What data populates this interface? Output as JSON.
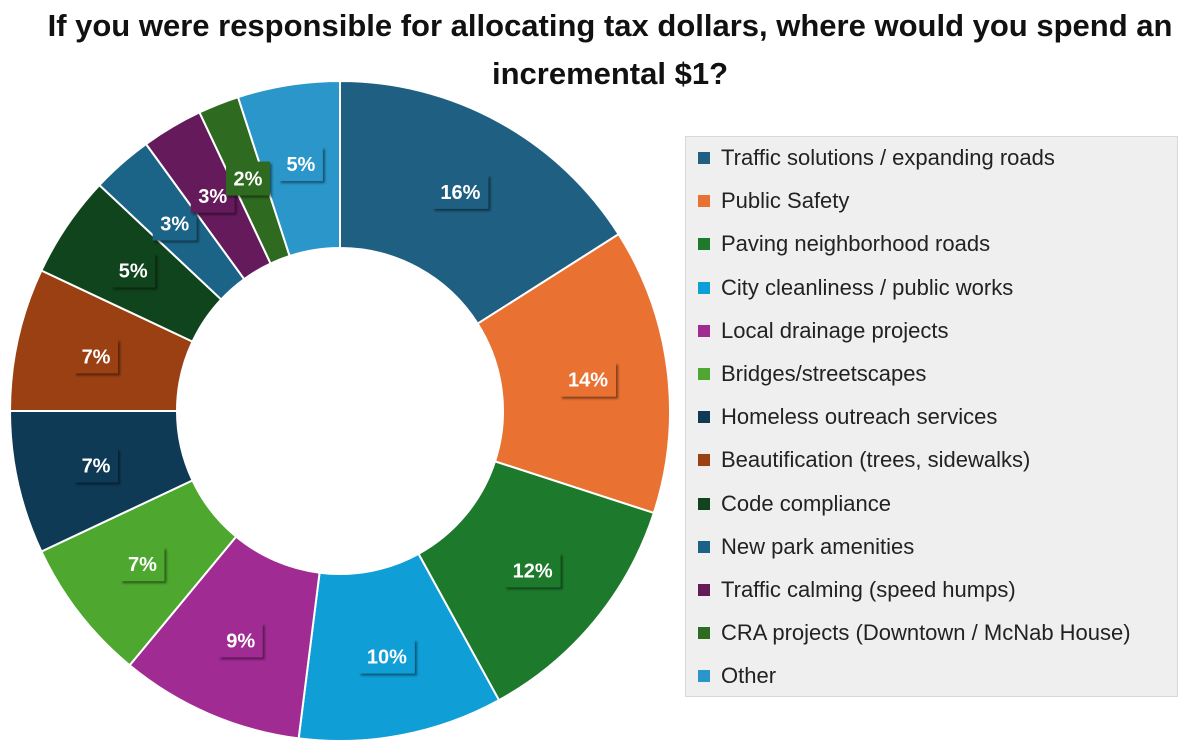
{
  "chart_data": {
    "type": "donut",
    "title": "If you were responsible for allocating tax dollars, where would you spend an incremental $1?",
    "unit": "%",
    "legend_position": "right",
    "slices": [
      {
        "name": "Traffic solutions / expanding roads",
        "value": 16,
        "label": "16%",
        "color": "#1f5f82"
      },
      {
        "name": "Public Safety",
        "value": 14,
        "label": "14%",
        "color": "#e97132"
      },
      {
        "name": "Paving neighborhood roads",
        "value": 12,
        "label": "12%",
        "color": "#1d7a2c"
      },
      {
        "name": "City cleanliness / public works",
        "value": 10,
        "label": "10%",
        "color": "#0f9ed5"
      },
      {
        "name": "Local drainage projects",
        "value": 9,
        "label": "9%",
        "color": "#a02b93"
      },
      {
        "name": "Bridges/streetscapes",
        "value": 7,
        "label": "7%",
        "color": "#4ea72e"
      },
      {
        "name": "Homeless outreach services",
        "value": 7,
        "label": "7%",
        "color": "#0e3a55"
      },
      {
        "name": "Beautification (trees, sidewalks)",
        "value": 7,
        "label": "7%",
        "color": "#9a4013"
      },
      {
        "name": "Code compliance",
        "value": 5,
        "label": "5%",
        "color": "#10441c"
      },
      {
        "name": "New park amenities",
        "value": 3,
        "label": "3%",
        "color": "#1b6488"
      },
      {
        "name": "Traffic calming (speed humps)",
        "value": 3,
        "label": "3%",
        "color": "#651a5c"
      },
      {
        "name": "CRA projects (Downtown / McNab House)",
        "value": 2,
        "label": "2%",
        "color": "#2e6a1f"
      },
      {
        "name": "Other",
        "value": 5,
        "label": "5%",
        "color": "#2a96ca"
      }
    ]
  }
}
